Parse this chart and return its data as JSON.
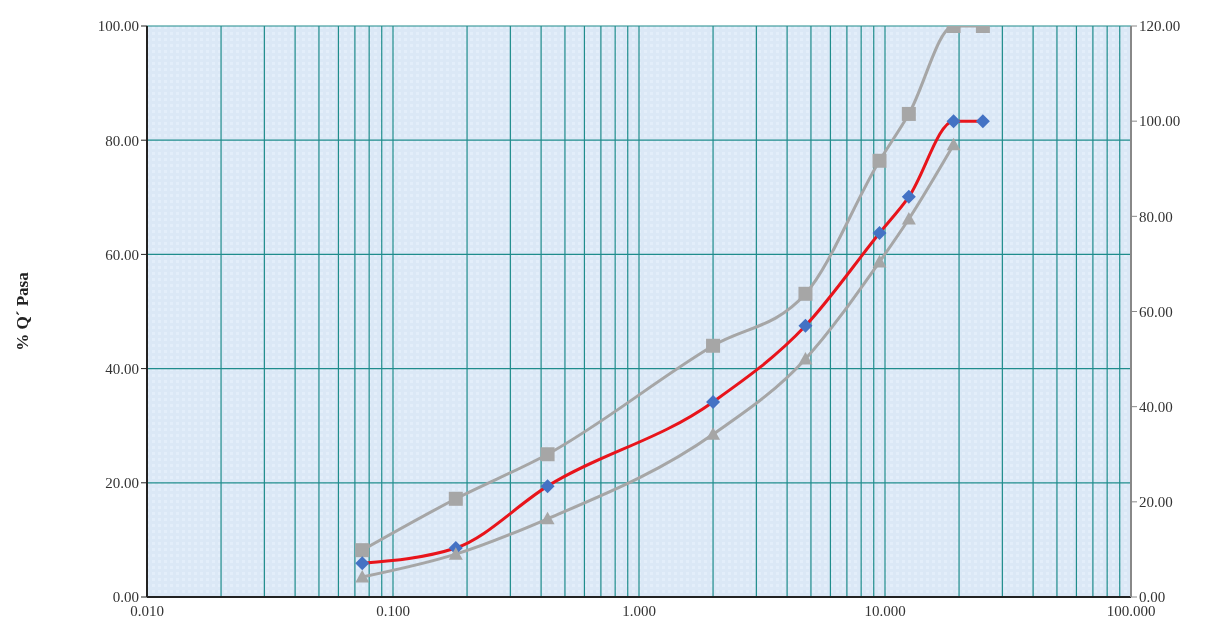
{
  "chart_data": {
    "type": "line",
    "ylabel": "% Q´ Pasa",
    "log": "x",
    "grid": true,
    "line_style": "solid",
    "xlim": [
      0.01,
      100
    ],
    "xticks": [
      {
        "value": 0.01,
        "label": "0.010"
      },
      {
        "value": 0.02,
        "label": null
      },
      {
        "value": 0.03,
        "label": null
      },
      {
        "value": 0.04,
        "label": null
      },
      {
        "value": 0.05,
        "label": null
      },
      {
        "value": 0.06,
        "label": null
      },
      {
        "value": 0.07,
        "label": null
      },
      {
        "value": 0.08,
        "label": null
      },
      {
        "value": 0.09,
        "label": null
      },
      {
        "value": 0.1,
        "label": "0.100"
      },
      {
        "value": 0.2,
        "label": null
      },
      {
        "value": 0.3,
        "label": null
      },
      {
        "value": 0.4,
        "label": null
      },
      {
        "value": 0.5,
        "label": null
      },
      {
        "value": 0.6,
        "label": null
      },
      {
        "value": 0.7,
        "label": null
      },
      {
        "value": 0.8,
        "label": null
      },
      {
        "value": 0.9,
        "label": null
      },
      {
        "value": 1,
        "label": "1.000"
      },
      {
        "value": 2,
        "label": null
      },
      {
        "value": 3,
        "label": null
      },
      {
        "value": 4,
        "label": null
      },
      {
        "value": 5,
        "label": null
      },
      {
        "value": 6,
        "label": null
      },
      {
        "value": 7,
        "label": null
      },
      {
        "value": 8,
        "label": null
      },
      {
        "value": 9,
        "label": null
      },
      {
        "value": 10,
        "label": "10.000"
      },
      {
        "value": 20,
        "label": null
      },
      {
        "value": 30,
        "label": null
      },
      {
        "value": 40,
        "label": null
      },
      {
        "value": 50,
        "label": null
      },
      {
        "value": 60,
        "label": null
      },
      {
        "value": 70,
        "label": null
      },
      {
        "value": 80,
        "label": null
      },
      {
        "value": 90,
        "label": null
      },
      {
        "value": 100,
        "label": "100.000"
      }
    ],
    "ylim": [
      0,
      100
    ],
    "yticks": [
      {
        "value": 0,
        "label": "0.00"
      },
      {
        "value": 20,
        "label": "20.00"
      },
      {
        "value": 40,
        "label": "40.00"
      },
      {
        "value": 60,
        "label": "60.00"
      },
      {
        "value": 80,
        "label": "80.00"
      },
      {
        "value": 100,
        "label": "100.00"
      }
    ],
    "y2lim": [
      0,
      120
    ],
    "y2ticks": [
      {
        "value": 0,
        "label": "0.00"
      },
      {
        "value": 20,
        "label": "20.00"
      },
      {
        "value": 40,
        "label": "40.00"
      },
      {
        "value": 60,
        "label": "60.00"
      },
      {
        "value": 80,
        "label": "80.00"
      },
      {
        "value": 100,
        "label": "100.00"
      },
      {
        "value": 120,
        "label": "120.00"
      }
    ],
    "x": [
      0.075,
      0.18,
      0.425,
      2,
      4.75,
      9.5,
      12.5,
      19,
      25
    ],
    "series": [
      {
        "color": "#a6a6a6",
        "marker": "square",
        "values": [
          8.2,
          17.2,
          25.0,
          44.0,
          53.1,
          76.4,
          84.6,
          100,
          100
        ]
      },
      {
        "color": "#e8141b",
        "colors": [
          "#4472c4",
          "#4472c4",
          "#4472c4",
          "#4472c4",
          "#4472c4",
          "#4472c4",
          "#4472c4",
          "#4472c4",
          "#4472c4"
        ],
        "marker": "diamond",
        "axis": "y2",
        "values": [
          7.1,
          10.3,
          23.3,
          41.0,
          57.0,
          76.5,
          84.1,
          100,
          100
        ]
      },
      {
        "color": "#a6a6a6",
        "marker": "triangle",
        "values": [
          3.5,
          7.5,
          13.7,
          28.5,
          41.7,
          58.7,
          66.2,
          79.2,
          null
        ]
      }
    ]
  }
}
